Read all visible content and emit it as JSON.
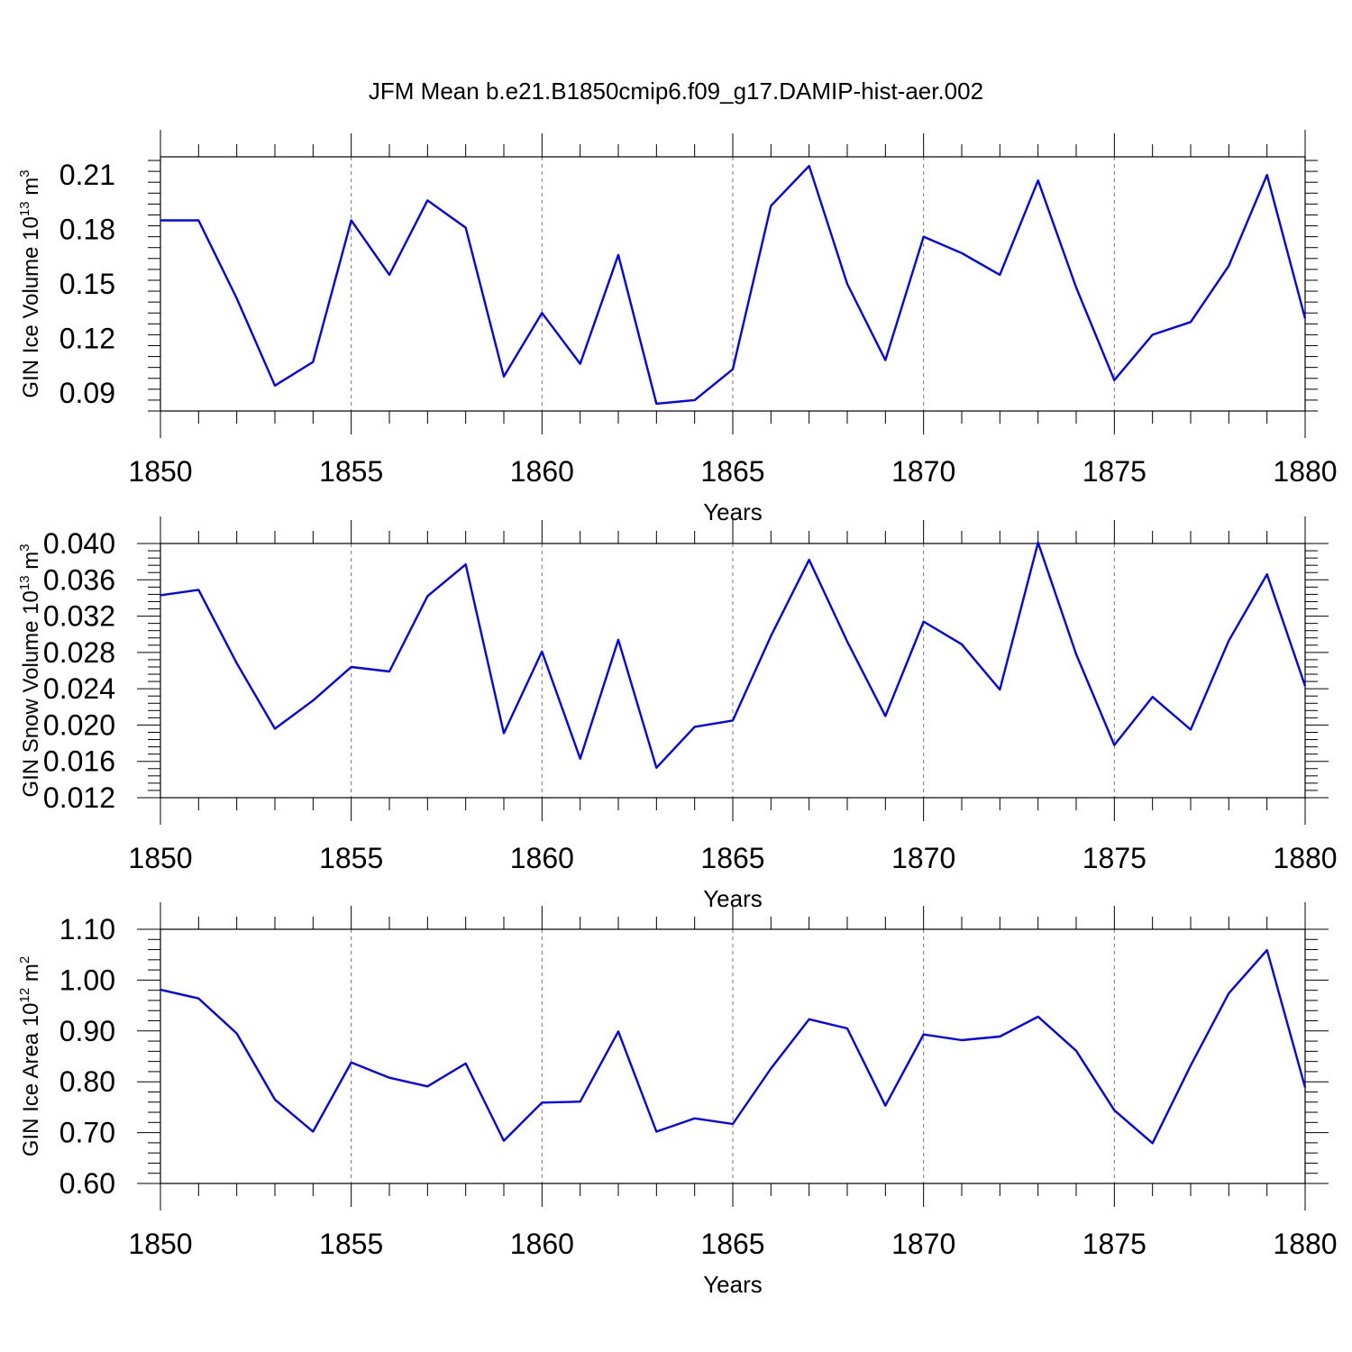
{
  "title": "JFM Mean b.e21.B1850cmip6.f09_g17.DAMIP-hist-aer.002",
  "line_color": "#0000ff",
  "chart_data": [
    {
      "type": "line",
      "xlabel": "Years",
      "ylabel": {
        "prefix": "GIN Ice Volume 10",
        "exp": "13",
        "unit": " m",
        "unit_exp": "3"
      },
      "xlim": [
        1850,
        1880
      ],
      "ylim": [
        0.08,
        0.22
      ],
      "x_ticks": [
        "1850",
        "1855",
        "1860",
        "1865",
        "1870",
        "1875",
        "1880"
      ],
      "y_ticks": [
        "0.09",
        "0.12",
        "0.15",
        "0.18",
        "0.21"
      ],
      "series": [
        {
          "name": "GIN Ice Volume",
          "x": [
            1850,
            1851,
            1852,
            1853,
            1854,
            1855,
            1856,
            1857,
            1858,
            1859,
            1860,
            1861,
            1862,
            1863,
            1864,
            1865,
            1866,
            1867,
            1868,
            1869,
            1870,
            1871,
            1872,
            1873,
            1874,
            1875,
            1876,
            1877,
            1878,
            1879,
            1880
          ],
          "values": [
            0.185,
            0.185,
            0.142,
            0.094,
            0.107,
            0.185,
            0.155,
            0.196,
            0.181,
            0.099,
            0.134,
            0.106,
            0.166,
            0.084,
            0.086,
            0.103,
            0.193,
            0.215,
            0.15,
            0.108,
            0.176,
            0.167,
            0.155,
            0.207,
            0.148,
            0.097,
            0.122,
            0.129,
            0.16,
            0.21,
            0.131
          ]
        }
      ]
    },
    {
      "type": "line",
      "xlabel": "Years",
      "ylabel": {
        "prefix": "GIN Snow Volume 10",
        "exp": "13",
        "unit": " m",
        "unit_exp": "3"
      },
      "xlim": [
        1850,
        1880
      ],
      "ylim": [
        0.012,
        0.04
      ],
      "x_ticks": [
        "1850",
        "1855",
        "1860",
        "1865",
        "1870",
        "1875",
        "1880"
      ],
      "y_ticks": [
        "0.012",
        "0.016",
        "0.020",
        "0.024",
        "0.028",
        "0.032",
        "0.036",
        "0.040"
      ],
      "series": [
        {
          "name": "GIN Snow Volume",
          "x": [
            1850,
            1851,
            1852,
            1853,
            1854,
            1855,
            1856,
            1857,
            1858,
            1859,
            1860,
            1861,
            1862,
            1863,
            1864,
            1865,
            1866,
            1867,
            1868,
            1869,
            1870,
            1871,
            1872,
            1873,
            1874,
            1875,
            1876,
            1877,
            1878,
            1879,
            1880
          ],
          "values": [
            0.0343,
            0.0349,
            0.0268,
            0.0196,
            0.0227,
            0.0264,
            0.0259,
            0.0342,
            0.0377,
            0.0191,
            0.0281,
            0.0163,
            0.0294,
            0.0153,
            0.0198,
            0.0205,
            0.0298,
            0.0382,
            0.0292,
            0.021,
            0.0314,
            0.0289,
            0.0239,
            0.0401,
            0.0278,
            0.0178,
            0.0231,
            0.0195,
            0.0293,
            0.0366,
            0.0243
          ]
        }
      ]
    },
    {
      "type": "line",
      "xlabel": "Years",
      "ylabel": {
        "prefix": "GIN Ice Area 10",
        "exp": "12",
        "unit": " m",
        "unit_exp": "2"
      },
      "xlim": [
        1850,
        1880
      ],
      "ylim": [
        0.6,
        1.1
      ],
      "x_ticks": [
        "1850",
        "1855",
        "1860",
        "1865",
        "1870",
        "1875",
        "1880"
      ],
      "y_ticks": [
        "0.60",
        "0.70",
        "0.80",
        "0.90",
        "1.00",
        "1.10"
      ],
      "series": [
        {
          "name": "GIN Ice Area",
          "x": [
            1850,
            1851,
            1852,
            1853,
            1854,
            1855,
            1856,
            1857,
            1858,
            1859,
            1860,
            1861,
            1862,
            1863,
            1864,
            1865,
            1866,
            1867,
            1868,
            1869,
            1870,
            1871,
            1872,
            1873,
            1874,
            1875,
            1876,
            1877,
            1878,
            1879,
            1880
          ],
          "values": [
            0.981,
            0.964,
            0.895,
            0.765,
            0.702,
            0.838,
            0.808,
            0.791,
            0.836,
            0.684,
            0.759,
            0.761,
            0.899,
            0.702,
            0.728,
            0.717,
            0.826,
            0.923,
            0.905,
            0.753,
            0.893,
            0.882,
            0.889,
            0.928,
            0.861,
            0.744,
            0.679,
            0.832,
            0.974,
            1.059,
            0.789
          ]
        }
      ]
    }
  ]
}
